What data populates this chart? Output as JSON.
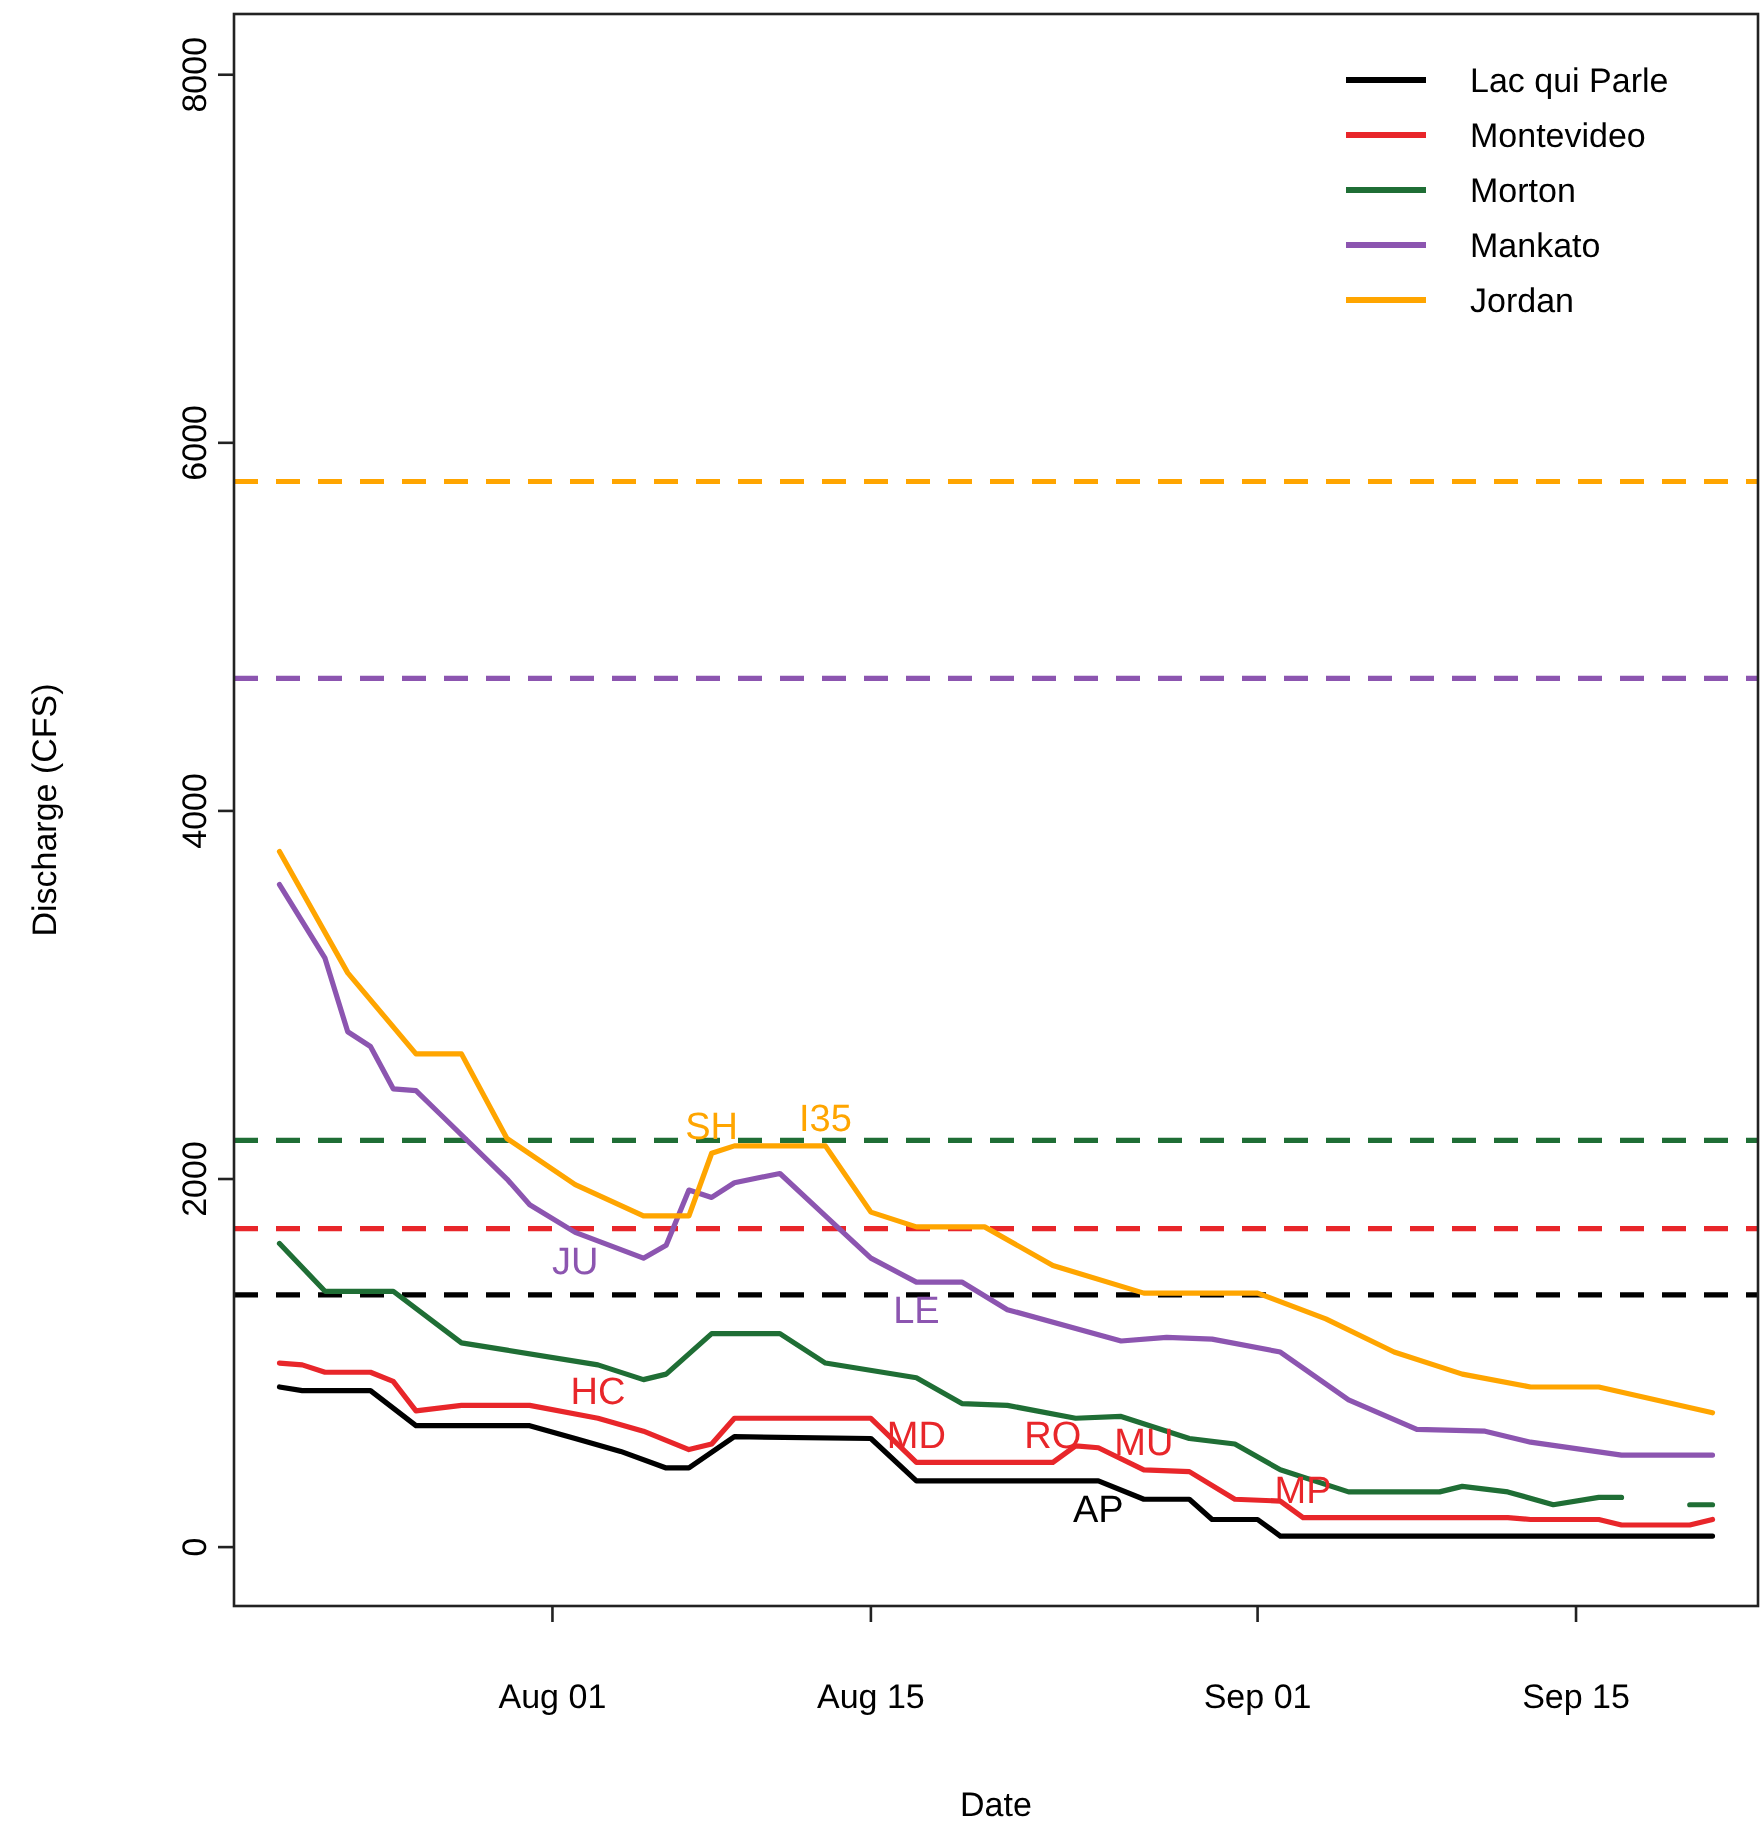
{
  "chart_data": {
    "type": "line",
    "xlabel": "Date",
    "ylabel": "Discharge (CFS)",
    "xlim": [
      "--07-18",
      "--09-23"
    ],
    "xticks": [
      {
        "value": "--08-01",
        "label": "Aug 01"
      },
      {
        "value": "--08-15",
        "label": "Aug 15"
      },
      {
        "value": "--09-01",
        "label": "Sep 01"
      },
      {
        "value": "--09-15",
        "label": "Sep 15"
      }
    ],
    "ylim": [
      -320,
      8330
    ],
    "yticks": [
      0,
      2000,
      4000,
      6000,
      8000
    ],
    "grid": false,
    "legend": "top right",
    "marker": "none",
    "line_style": "solid",
    "series": [
      {
        "name": "Lac qui Parle",
        "color": "#000000",
        "x": [
          "--07-20",
          "--07-21",
          "--07-24",
          "--07-26",
          "--07-31",
          "--08-02",
          "--08-04",
          "--08-06",
          "--08-07",
          "--08-09",
          "--08-15",
          "--08-17",
          "--08-25",
          "--08-27",
          "--08-29",
          "--08-30",
          "--09-01",
          "--09-02",
          "--09-21"
        ],
        "values": [
          870,
          850,
          850,
          660,
          660,
          590,
          520,
          430,
          430,
          600,
          590,
          360,
          360,
          260,
          260,
          150,
          150,
          60,
          60
        ]
      },
      {
        "name": "Montevideo",
        "color": "#e8262a",
        "x": [
          "--07-20",
          "--07-21",
          "--07-22",
          "--07-24",
          "--07-25",
          "--07-26",
          "--07-28",
          "--07-31",
          "--08-03",
          "--08-05",
          "--08-07",
          "--08-08",
          "--08-09",
          "--08-15",
          "--08-17",
          "--08-23",
          "--08-24",
          "--08-25",
          "--08-27",
          "--08-29",
          "--08-31",
          "--09-02",
          "--09-03",
          "--09-12",
          "--09-13",
          "--09-16",
          "--09-17",
          "--09-20",
          "--09-21"
        ],
        "values": [
          1000,
          990,
          950,
          950,
          900,
          740,
          770,
          770,
          700,
          630,
          530,
          560,
          700,
          700,
          460,
          460,
          550,
          540,
          420,
          410,
          260,
          250,
          160,
          160,
          150,
          150,
          120,
          120,
          150
        ]
      },
      {
        "name": "Morton",
        "color": "#1f6e35",
        "x": [
          "--07-20",
          "--07-22",
          "--07-25",
          "--07-28",
          "--07-30",
          "--08-03",
          "--08-05",
          "--08-06",
          "--08-08",
          "--08-11",
          "--08-13",
          "--08-17",
          "--08-19",
          "--08-21",
          "--08-24",
          "--08-26",
          "--08-29",
          "--08-31",
          "--09-02",
          "--09-05",
          "--09-09",
          "--09-10",
          "--09-12",
          "--09-14",
          "--09-16",
          "--09-17",
          "--09-18",
          "--09-20",
          "--09-21"
        ],
        "values": [
          1650,
          1390,
          1390,
          1110,
          1070,
          990,
          910,
          940,
          1160,
          1160,
          1000,
          920,
          780,
          770,
          700,
          710,
          590,
          560,
          420,
          300,
          300,
          330,
          300,
          230,
          270,
          270,
          null,
          230,
          230
        ]
      },
      {
        "name": "Mankato",
        "color": "#8c55b0",
        "x": [
          "--07-20",
          "--07-22",
          "--07-23",
          "--07-24",
          "--07-25",
          "--07-26",
          "--07-27",
          "--07-30",
          "--07-31",
          "--08-02",
          "--08-05",
          "--08-06",
          "--08-07",
          "--08-08",
          "--08-09",
          "--08-11",
          "--08-13",
          "--08-15",
          "--08-17",
          "--08-19",
          "--08-21",
          "--08-26",
          "--08-28",
          "--08-30",
          "--09-02",
          "--09-05",
          "--09-08",
          "--09-11",
          "--09-13",
          "--09-17",
          "--09-21"
        ],
        "values": [
          3600,
          3200,
          2800,
          2720,
          2490,
          2480,
          2360,
          2000,
          1860,
          1710,
          1570,
          1640,
          1940,
          1900,
          1980,
          2030,
          1800,
          1570,
          1440,
          1440,
          1290,
          1120,
          1140,
          1130,
          1060,
          800,
          640,
          630,
          570,
          500,
          500
        ]
      },
      {
        "name": "Jordan",
        "color": "#ffa500",
        "x": [
          "--07-20",
          "--07-23",
          "--07-26",
          "--07-28",
          "--07-30",
          "--08-02",
          "--08-05",
          "--08-07",
          "--08-08",
          "--08-09",
          "--08-13",
          "--08-15",
          "--08-17",
          "--08-20",
          "--08-23",
          "--08-27",
          "--09-01",
          "--09-04",
          "--09-07",
          "--09-10",
          "--09-13",
          "--09-16",
          "--09-21"
        ],
        "values": [
          3780,
          3120,
          2680,
          2680,
          2220,
          1970,
          1800,
          1800,
          2140,
          2180,
          2180,
          1820,
          1740,
          1740,
          1530,
          1380,
          1380,
          1240,
          1060,
          940,
          870,
          870,
          730
        ]
      }
    ],
    "ref_lines": [
      {
        "axis": "y",
        "value": 1370,
        "color": "#000000",
        "line_style": "dashed"
      },
      {
        "axis": "y",
        "value": 1730,
        "color": "#e8262a",
        "line_style": "dashed"
      },
      {
        "axis": "y",
        "value": 2210,
        "color": "#1f6e35",
        "line_style": "dashed"
      },
      {
        "axis": "y",
        "value": 4720,
        "color": "#8c55b0",
        "line_style": "dashed"
      },
      {
        "axis": "y",
        "value": 5790,
        "color": "#ffa500",
        "line_style": "dashed"
      }
    ],
    "annotations": [
      {
        "text": "JU",
        "x": "--08-02",
        "y": 1710
      },
      {
        "text": "SH",
        "x": "--08-08",
        "y": 2140
      },
      {
        "text": "I35",
        "x": "--08-13",
        "y": 2180
      },
      {
        "text": "LE",
        "x": "--08-17",
        "y": 1440
      },
      {
        "text": "HC",
        "x": "--08-03",
        "y": 700
      },
      {
        "text": "MD",
        "x": "--08-17",
        "y": 460
      },
      {
        "text": "RO",
        "x": "--08-23",
        "y": 460
      },
      {
        "text": "AP",
        "x": "--08-25",
        "y": 360
      },
      {
        "text": "MU",
        "x": "--08-27",
        "y": 420
      },
      {
        "text": "MP",
        "x": "--09-03",
        "y": 160
      }
    ]
  }
}
